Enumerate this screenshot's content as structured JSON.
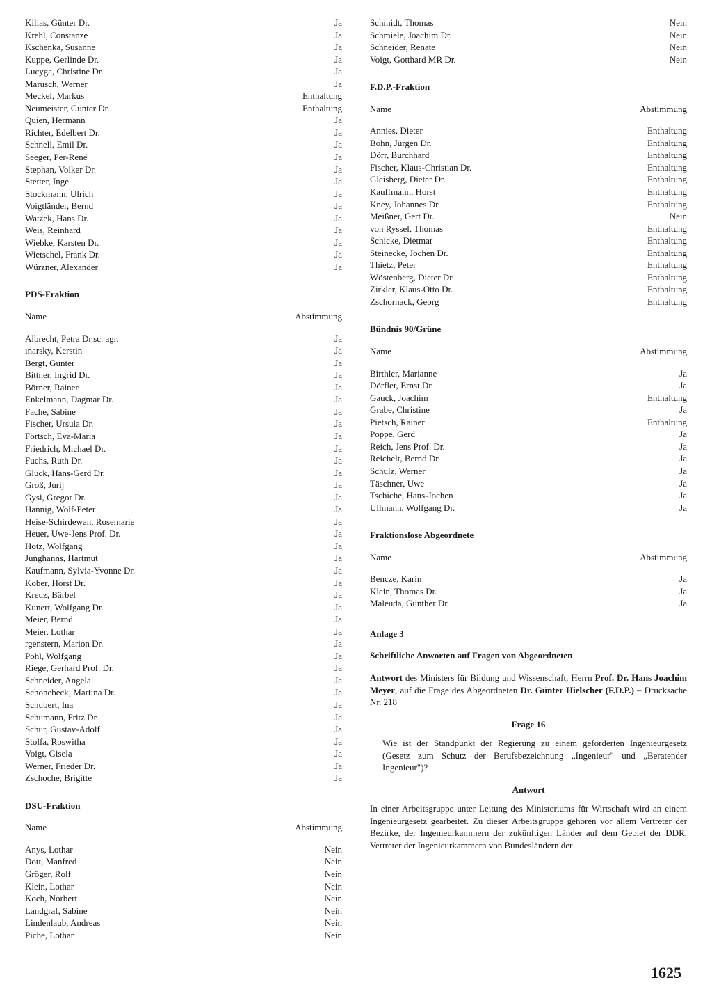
{
  "left": {
    "first_group_rows": [
      {
        "n": "Kilias, Günter Dr.",
        "v": "Ja"
      },
      {
        "n": "Krehl, Constanze",
        "v": "Ja"
      },
      {
        "n": "Kschenka, Susanne",
        "v": "Ja"
      },
      {
        "n": "Kuppe, Gerlinde Dr.",
        "v": "Ja"
      },
      {
        "n": "Lucyga, Christine Dr.",
        "v": "Ja"
      },
      {
        "n": "Marusch, Werner",
        "v": "Ja"
      },
      {
        "n": "Meckel, Markus",
        "v": "Enthaltung"
      },
      {
        "n": "Neumeister, Günter Dr.",
        "v": "Enthaltung"
      },
      {
        "n": "Quien, Hermann",
        "v": "Ja"
      },
      {
        "n": "Richter, Edelbert Dr.",
        "v": "Ja"
      },
      {
        "n": "Schnell, Emil Dr.",
        "v": "Ja"
      },
      {
        "n": "Seeger, Per-René",
        "v": "Ja"
      },
      {
        "n": "Stephan, Volker Dr.",
        "v": "Ja"
      },
      {
        "n": "Stetter, Inge",
        "v": "Ja"
      },
      {
        "n": "Stockmann, Ulrich",
        "v": "Ja"
      },
      {
        "n": "Voigtländer, Bernd",
        "v": "Ja"
      },
      {
        "n": "Watzek, Hans Dr.",
        "v": "Ja"
      },
      {
        "n": "Weis, Reinhard",
        "v": "Ja"
      },
      {
        "n": "Wiebke, Karsten Dr.",
        "v": "Ja"
      },
      {
        "n": "Wietschel, Frank Dr.",
        "v": "Ja"
      },
      {
        "n": "Würzner, Alexander",
        "v": "Ja"
      }
    ],
    "pds": {
      "title": "PDS-Fraktion",
      "hdr_name": "Name",
      "hdr_vote": "Abstimmung",
      "rows": [
        {
          "n": "Albrecht, Petra Dr.sc. agr.",
          "v": "Ja"
        },
        {
          "n": "ınarsky, Kerstin",
          "v": "Ja"
        },
        {
          "n": "Bergt, Gunter",
          "v": "Ja"
        },
        {
          "n": "Bittner, Ingrid Dr.",
          "v": "Ja"
        },
        {
          "n": "Börner, Rainer",
          "v": "Ja"
        },
        {
          "n": "Enkelmann, Dagmar Dr.",
          "v": "Ja"
        },
        {
          "n": "Fache, Sabine",
          "v": "Ja"
        },
        {
          "n": "Fischer, Ursula Dr.",
          "v": "Ja"
        },
        {
          "n": "Förtsch, Eva-Maria",
          "v": "Ja"
        },
        {
          "n": "Friedrich, Michael Dr.",
          "v": "Ja"
        },
        {
          "n": "Fuchs, Ruth Dr.",
          "v": "Ja"
        },
        {
          "n": "Glück, Hans-Gerd Dr.",
          "v": "Ja"
        },
        {
          "n": "Groß, Jurij",
          "v": "Ja"
        },
        {
          "n": "Gysi, Gregor Dr.",
          "v": "Ja"
        },
        {
          "n": "Hannig, Wolf-Peter",
          "v": "Ja"
        },
        {
          "n": "Heise-Schirdewan, Rosemarie",
          "v": "Ja"
        },
        {
          "n": "Heuer, Uwe-Jens Prof. Dr.",
          "v": "Ja"
        },
        {
          "n": "Hotz, Wolfgang",
          "v": "Ja"
        },
        {
          "n": "Junghanns, Hartmut",
          "v": "Ja"
        },
        {
          "n": "Kaufmann, Sylvia-Yvonne Dr.",
          "v": "Ja"
        },
        {
          "n": "Kober, Horst Dr.",
          "v": "Ja"
        },
        {
          "n": "Kreuz, Bärbel",
          "v": "Ja"
        },
        {
          "n": "Kunert, Wolfgang Dr.",
          "v": "Ja"
        },
        {
          "n": "Meier, Bernd",
          "v": "Ja"
        },
        {
          "n": "Meier, Lothar",
          "v": "Ja"
        },
        {
          "n": "rgenstern, Marion Dr.",
          "v": "Ja"
        },
        {
          "n": "Pohl, Wolfgang",
          "v": "Ja"
        },
        {
          "n": "Riege, Gerhard Prof. Dr.",
          "v": "Ja"
        },
        {
          "n": "Schneider, Angela",
          "v": "Ja"
        },
        {
          "n": "Schönebeck, Martina Dr.",
          "v": "Ja"
        },
        {
          "n": "Schubert, Ina",
          "v": "Ja"
        },
        {
          "n": "Schumann, Fritz Dr.",
          "v": "Ja"
        },
        {
          "n": "Schur, Gustav-Adolf",
          "v": "Ja"
        },
        {
          "n": "Stolfa, Roswitha",
          "v": "Ja"
        },
        {
          "n": "Voigt, Gisela",
          "v": "Ja"
        },
        {
          "n": "Werner, Frieder Dr.",
          "v": "Ja"
        },
        {
          "n": "Zschoche, Brigitte",
          "v": "Ja"
        }
      ]
    },
    "dsu": {
      "title": "DSU-Fraktion",
      "hdr_name": "Name",
      "hdr_vote": "Abstimmung",
      "rows": [
        {
          "n": "Anys, Lothar",
          "v": "Nein"
        },
        {
          "n": "Dott, Manfred",
          "v": "Nein"
        },
        {
          "n": "Gröger, Rolf",
          "v": "Nein"
        },
        {
          "n": "Klein, Lothar",
          "v": "Nein"
        },
        {
          "n": "Koch, Norbert",
          "v": "Nein"
        },
        {
          "n": "Landgraf, Sabine",
          "v": "Nein"
        },
        {
          "n": "Lindenlaub, Andreas",
          "v": "Nein"
        },
        {
          "n": "Piche, Lothar",
          "v": "Nein"
        }
      ]
    }
  },
  "right": {
    "first_group_rows": [
      {
        "n": "Schmidt, Thomas",
        "v": "Nein"
      },
      {
        "n": "Schmiele, Joachim Dr.",
        "v": "Nein"
      },
      {
        "n": "Schneider, Renate",
        "v": "Nein"
      },
      {
        "n": "Voigt, Gotthard MR Dr.",
        "v": "Nein"
      }
    ],
    "fdp": {
      "title": "F.D.P.-Fraktion",
      "hdr_name": "Name",
      "hdr_vote": "Abstimmung",
      "rows": [
        {
          "n": "Annies, Dieter",
          "v": "Enthaltung"
        },
        {
          "n": "Bohn, Jürgen Dr.",
          "v": "Enthaltung"
        },
        {
          "n": "Dörr, Burchhard",
          "v": "Enthaltung"
        },
        {
          "n": "Fischer, Klaus-Christian Dr.",
          "v": "Enthaltung"
        },
        {
          "n": "Gleisberg, Dieter Dr.",
          "v": "Enthaltung"
        },
        {
          "n": "Kauffmann, Horst",
          "v": "Enthaltung"
        },
        {
          "n": "Kney, Johannes Dr.",
          "v": "Enthaltung"
        },
        {
          "n": "Meißner, Gert Dr.",
          "v": "Nein"
        },
        {
          "n": "von Ryssel, Thomas",
          "v": "Enthaltung"
        },
        {
          "n": "Schicke, Dietmar",
          "v": "Enthaltung"
        },
        {
          "n": "Steinecke, Jochen Dr.",
          "v": "Enthaltung"
        },
        {
          "n": "Thietz, Peter",
          "v": "Enthaltung"
        },
        {
          "n": "Wöstenberg, Dieter Dr.",
          "v": "Enthaltung"
        },
        {
          "n": "Zirkler, Klaus-Otto Dr.",
          "v": "Enthaltung"
        },
        {
          "n": "Zschornack, Georg",
          "v": "Enthaltung"
        }
      ]
    },
    "gruene": {
      "title": "Bündnis 90/Grüne",
      "hdr_name": "Name",
      "hdr_vote": "Abstimmung",
      "rows": [
        {
          "n": "Birthler, Marianne",
          "v": "Ja"
        },
        {
          "n": "Dörfler, Ernst Dr.",
          "v": "Ja"
        },
        {
          "n": "Gauck, Joachim",
          "v": "Enthaltung"
        },
        {
          "n": "Grabe, Christine",
          "v": "Ja"
        },
        {
          "n": "Pietsch, Rainer",
          "v": "Enthaltung"
        },
        {
          "n": "Poppe, Gerd",
          "v": "Ja"
        },
        {
          "n": "Reich, Jens Prof. Dr.",
          "v": "Ja"
        },
        {
          "n": "Reichelt, Bernd Dr.",
          "v": "Ja"
        },
        {
          "n": "Schulz, Werner",
          "v": "Ja"
        },
        {
          "n": "Täschner, Uwe",
          "v": "Ja"
        },
        {
          "n": "Tschiche, Hans-Jochen",
          "v": "Ja"
        },
        {
          "n": "Ullmann, Wolfgang Dr.",
          "v": "Ja"
        }
      ]
    },
    "fraktionslos": {
      "title": "Fraktionslose Abgeordnete",
      "hdr_name": "Name",
      "hdr_vote": "Abstimmung",
      "rows": [
        {
          "n": "Bencze, Karin",
          "v": "Ja"
        },
        {
          "n": "Klein, Thomas Dr.",
          "v": "Ja"
        },
        {
          "n": "Maleuda, Günther Dr.",
          "v": "Ja"
        }
      ]
    },
    "anlage": {
      "title": "Anlage 3",
      "subtitle": "Schriftliche Anworten auf Fragen von Abgeordneten",
      "intro_prefix": "Antwort",
      "intro_mid1": " des Ministers für Bildung und Wissenschaft, Herrn ",
      "intro_b1": "Prof. Dr. Hans Joachim Meyer",
      "intro_mid2": ", auf die Frage des Abgeordneten ",
      "intro_b2": "Dr. Günter Hielscher (F.D.P.)",
      "intro_tail": " – Drucksache Nr. 218",
      "frage_label": "Frage 16",
      "frage_text": "Wie ist der Standpunkt der Regierung zu einem geforderten Ingenieurgesetz (Gesetz zum Schutz der Berufsbezeichnung „Ingenieur\" und „Beratender Ingenieur\")?",
      "antwort_label": "Antwort",
      "antwort_text": "In einer Arbeitsgruppe unter Leitung des Ministeriums für Wirtschaft wird an einem Ingenieurgesetz gearbeitet. Zu dieser Arbeitsgruppe gehören vor allem Vertreter der Bezirke, der Ingenieurkammern der zukünftigen Länder auf dem Gebiet der DDR, Vertreter der Ingenieurkammern von Bundesländern der"
    }
  },
  "page_number": "1625"
}
